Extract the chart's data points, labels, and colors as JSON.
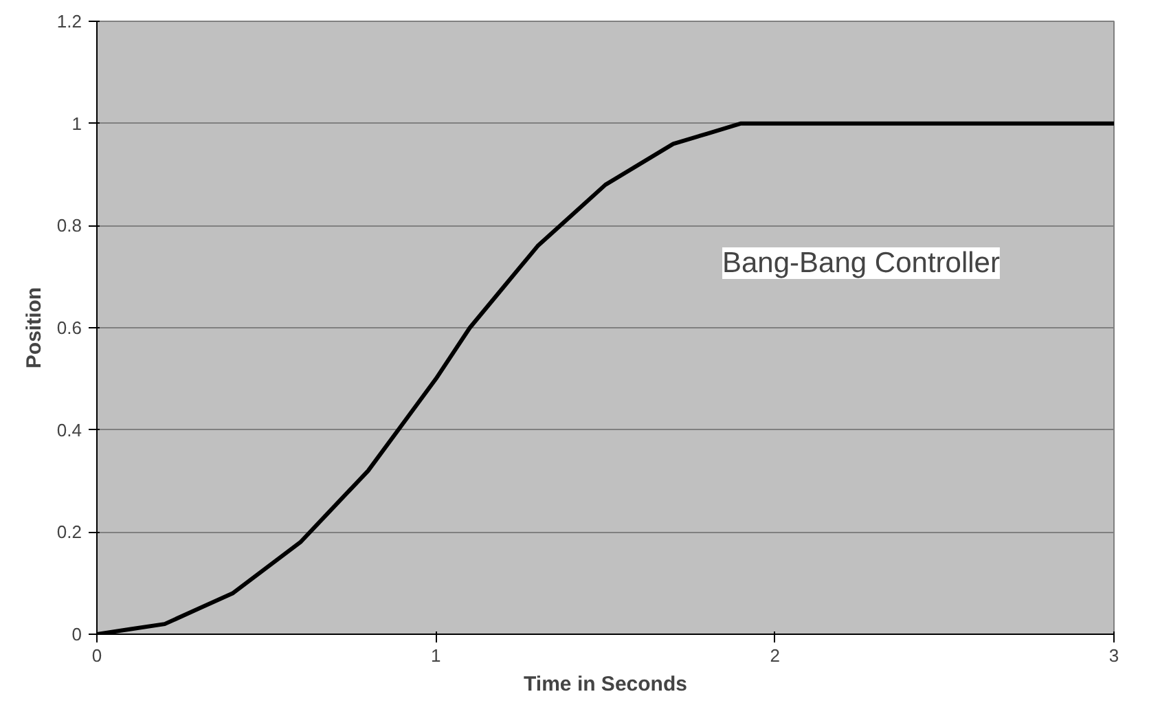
{
  "chart_data": {
    "type": "line",
    "xlabel": "Time in Seconds",
    "ylabel": "Position",
    "annotations": [
      "Bang-Bang Controller"
    ],
    "x": [
      0,
      0.1,
      0.2,
      0.3,
      0.4,
      0.5,
      0.6,
      0.7,
      0.8,
      0.9,
      1.0,
      1.1,
      1.2,
      1.3,
      1.4,
      1.5,
      1.6,
      1.7,
      1.8,
      1.9,
      2.0,
      3.0
    ],
    "series": [
      {
        "color": "#000000",
        "values": [
          0,
          0.01,
          0.02,
          0.05,
          0.08,
          0.13,
          0.18,
          0.25,
          0.32,
          0.41,
          0.5,
          0.6,
          0.68,
          0.76,
          0.82,
          0.88,
          0.92,
          0.96,
          0.98,
          1.0,
          1.0,
          1.0
        ]
      }
    ],
    "xlim": [
      0,
      3
    ],
    "ylim": [
      0,
      1.2
    ],
    "xticks": [
      0,
      1,
      2,
      3
    ],
    "yticks": [
      0,
      0.2,
      0.4,
      0.6,
      0.8,
      1,
      1.2
    ],
    "grid": "y",
    "marker": "none",
    "line_style": "solid"
  }
}
